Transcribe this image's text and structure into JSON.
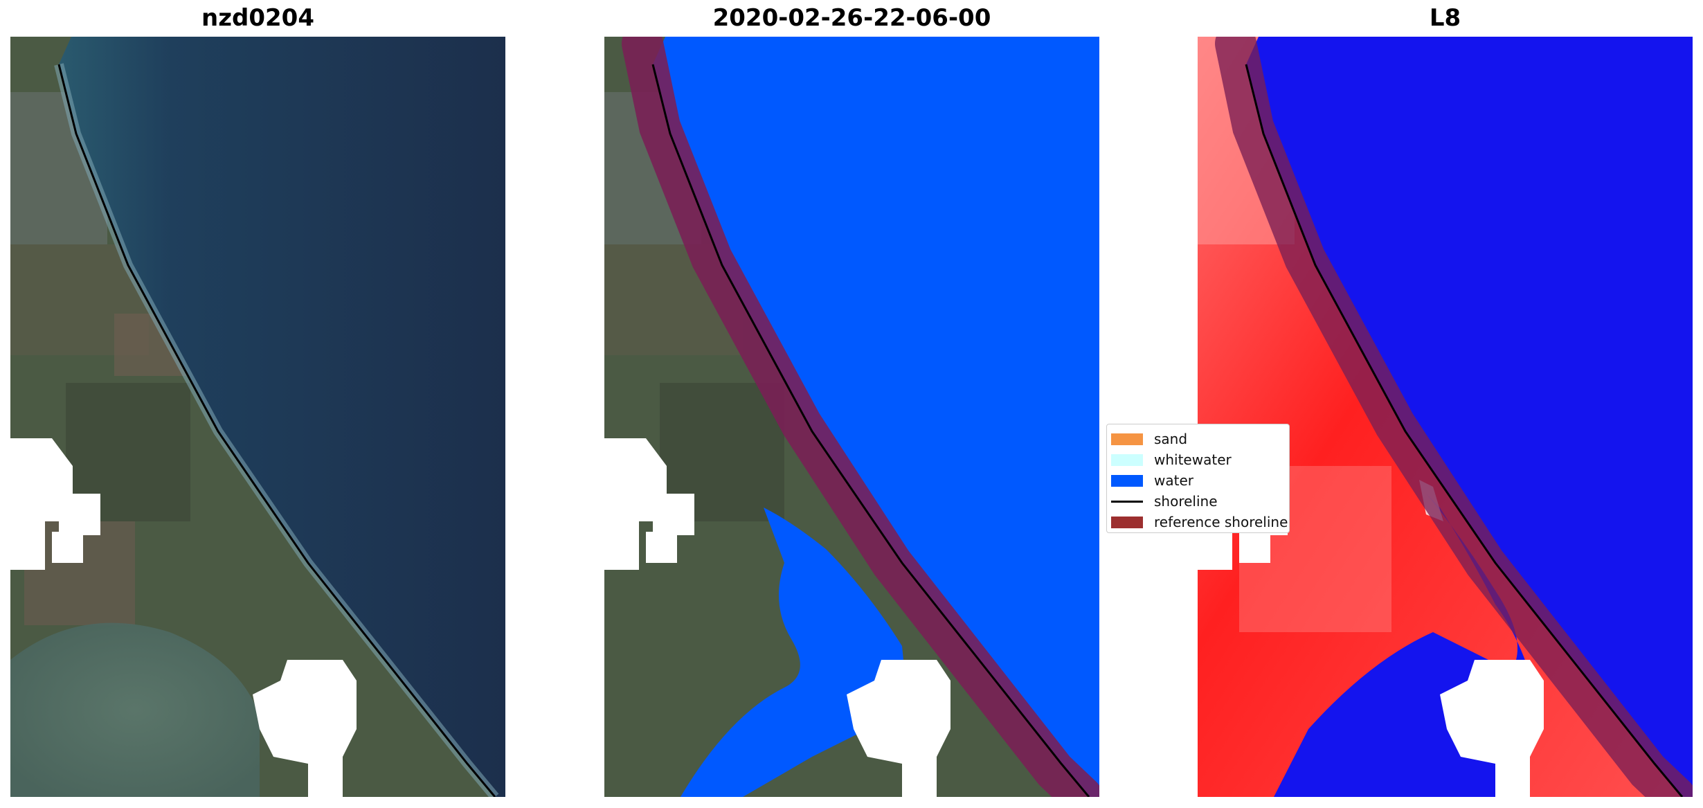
{
  "panels": [
    {
      "title": "nzd0204"
    },
    {
      "title": "2020-02-26-22-06-00"
    },
    {
      "title": "L8"
    }
  ],
  "legend": {
    "items": [
      {
        "label": "sand",
        "color": "#f59443",
        "kind": "patch"
      },
      {
        "label": "whitewater",
        "color": "#ccffff",
        "kind": "patch"
      },
      {
        "label": "water",
        "color": "#0059ff",
        "kind": "patch"
      },
      {
        "label": "shoreline",
        "color": "#000000",
        "kind": "line"
      },
      {
        "label": "reference shoreline",
        "color": "#9c2f2f",
        "kind": "patch"
      }
    ]
  },
  "colors": {
    "ocean_rgb": "#1f3753",
    "land_rgb": "#4b5a44",
    "water_class": "#0059ff",
    "index_land": "#ff2a2a",
    "index_water": "#1414ee",
    "reference_band": "#7a1f55",
    "cloud_mask": "#ffffff"
  }
}
